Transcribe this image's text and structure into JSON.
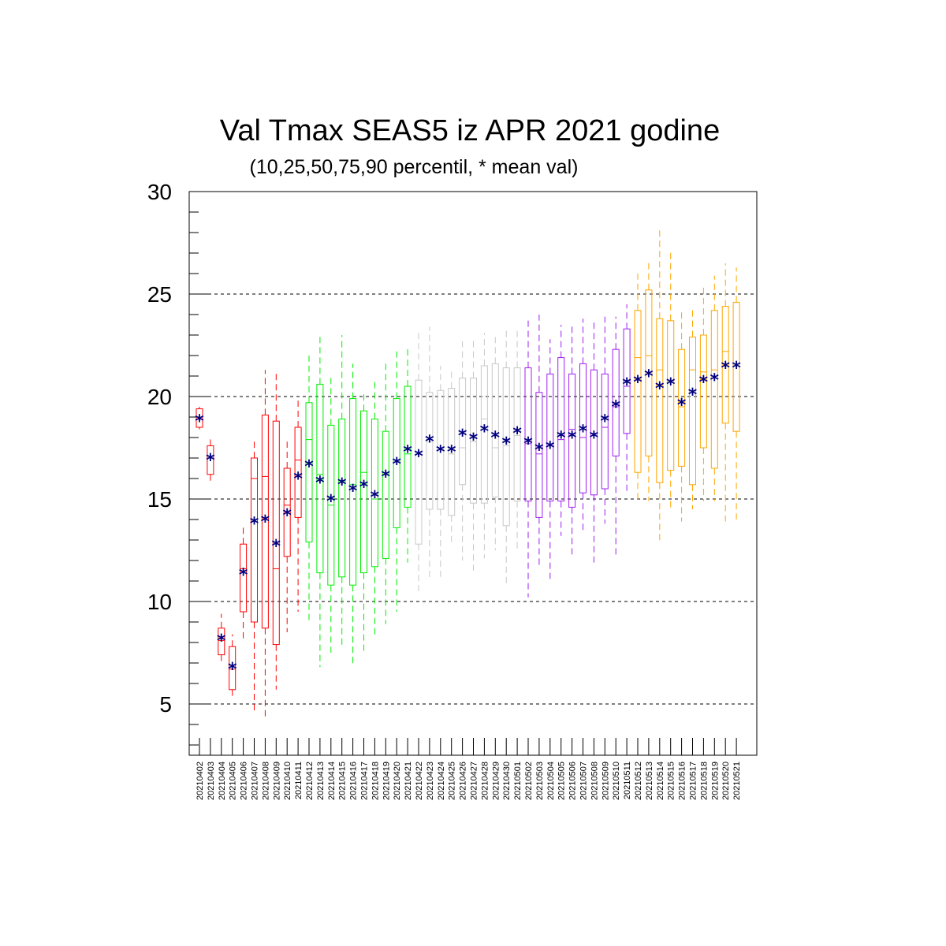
{
  "chart_data": {
    "type": "box",
    "title": "Val Tmax SEAS5 iz APR 2021 godine",
    "subtitle": "(10,25,50,75,90 percentil, * mean val)",
    "ylim": [
      2.5,
      30
    ],
    "yticks": [
      5,
      10,
      15,
      20,
      25,
      30
    ],
    "y_minor_step": 1,
    "grid": "horizontal dashed at major ticks",
    "mean_marker": "*",
    "mean_color": "#000080",
    "month_colors": {
      "2021-04-02..2021-04-11": "#ff0000",
      "2021-04-12..2021-04-21": "#00ee00",
      "2021-04-22..2021-05-01": "#c8c8c8",
      "2021-05-02..2021-05-11": "#a020f0",
      "2021-05-12..2021-05-21": "#ffa500"
    },
    "categories": [
      "20210402",
      "20210403",
      "20210404",
      "20210405",
      "20210406",
      "20210407",
      "20210408",
      "20210409",
      "20210410",
      "20210411",
      "20210412",
      "20210413",
      "20210414",
      "20210415",
      "20210416",
      "20210417",
      "20210418",
      "20210419",
      "20210420",
      "20210421",
      "20210422",
      "20210423",
      "20210424",
      "20210425",
      "20210426",
      "20210427",
      "20210428",
      "20210429",
      "20210430",
      "20210501",
      "20210502",
      "20210503",
      "20210504",
      "20210505",
      "20210506",
      "20210507",
      "20210508",
      "20210509",
      "20210510",
      "20210511",
      "20210512",
      "20210513",
      "20210514",
      "20210515",
      "20210516",
      "20210517",
      "20210518",
      "20210519",
      "20210520",
      "20210521"
    ],
    "p10": [
      18.4,
      15.8,
      7.0,
      5.4,
      8.2,
      4.5,
      4.2,
      5.7,
      8.5,
      9.5,
      9.0,
      6.8,
      7.5,
      7.8,
      6.9,
      7.5,
      8.4,
      8.9,
      9.5,
      11.9,
      10.5,
      11.0,
      11.2,
      12.8,
      12.0,
      11.5,
      12.1,
      12.5,
      10.7,
      12.5,
      10.2,
      11.7,
      11.1,
      13.2,
      12.3,
      13.4,
      11.9,
      13.8,
      12.2,
      15.2,
      14.9,
      14.9,
      12.8,
      14.5,
      13.9,
      14.5,
      14.9,
      14.9,
      13.9,
      13.9
    ],
    "p25": [
      18.5,
      16.2,
      7.4,
      5.7,
      9.5,
      9.0,
      8.7,
      7.9,
      12.2,
      14.1,
      12.9,
      11.4,
      10.8,
      11.2,
      10.8,
      11.4,
      11.7,
      12.1,
      13.6,
      14.6,
      12.8,
      14.5,
      14.5,
      14.2,
      15.7,
      14.8,
      14.8,
      15.1,
      13.7,
      14.9,
      14.9,
      14.1,
      14.9,
      14.9,
      14.6,
      15.3,
      15.2,
      15.5,
      17.1,
      18.2,
      16.3,
      17.1,
      15.8,
      16.4,
      16.6,
      15.7,
      17.5,
      16.5,
      18.7,
      18.3
    ],
    "p50": [
      18.9,
      17.0,
      8.1,
      6.7,
      11.6,
      16.0,
      16.1,
      11.6,
      14.7,
      16.9,
      17.9,
      16.2,
      14.7,
      15.9,
      15.7,
      16.3,
      15.0,
      16.2,
      16.9,
      17.2,
      17.3,
      17.8,
      17.4,
      17.2,
      17.5,
      17.8,
      18.9,
      17.5,
      17.6,
      18.1,
      17.7,
      17.2,
      17.6,
      17.9,
      18.4,
      18.0,
      18.2,
      18.5,
      19.5,
      20.5,
      21.9,
      22.0,
      21.3,
      20.7,
      19.5,
      21.3,
      21.2,
      21.3,
      22.2,
      21.5
    ],
    "p75": [
      19.4,
      17.6,
      8.7,
      7.8,
      12.8,
      17.0,
      19.1,
      18.8,
      16.5,
      18.5,
      19.7,
      20.6,
      18.6,
      18.9,
      19.9,
      19.3,
      18.9,
      18.3,
      19.9,
      20.5,
      20.8,
      20.2,
      20.3,
      20.4,
      20.9,
      20.9,
      21.5,
      21.6,
      21.4,
      21.4,
      21.4,
      20.2,
      21.1,
      21.9,
      21.1,
      21.6,
      21.3,
      21.1,
      22.3,
      23.3,
      24.2,
      25.2,
      23.8,
      23.7,
      22.3,
      22.9,
      23.0,
      24.2,
      24.4,
      24.6
    ],
    "p90": [
      19.5,
      18.0,
      9.4,
      8.4,
      13.6,
      17.8,
      21.3,
      21.3,
      17.8,
      19.8,
      22.0,
      23.0,
      21.1,
      23.0,
      21.6,
      20.3,
      20.8,
      21.6,
      22.2,
      22.4,
      23.3,
      23.4,
      21.5,
      21.3,
      22.7,
      22.9,
      23.1,
      22.9,
      23.3,
      23.2,
      23.9,
      24.0,
      22.8,
      23.5,
      23.6,
      23.8,
      23.8,
      23.9,
      23.9,
      24.5,
      26.0,
      26.7,
      28.2,
      27.1,
      24.2,
      24.3,
      25.4,
      25.9,
      26.5,
      26.3
    ],
    "mean": [
      18.9,
      17.0,
      8.2,
      6.8,
      11.4,
      13.9,
      14.0,
      12.8,
      14.3,
      16.1,
      16.7,
      15.9,
      15.0,
      15.8,
      15.5,
      15.7,
      15.2,
      16.2,
      16.8,
      17.4,
      17.2,
      17.9,
      17.4,
      17.4,
      18.2,
      18.0,
      18.4,
      18.1,
      17.8,
      18.3,
      17.8,
      17.5,
      17.6,
      18.1,
      18.1,
      18.4,
      18.1,
      18.9,
      19.6,
      20.7,
      20.8,
      21.1,
      20.5,
      20.7,
      19.7,
      20.2,
      20.8,
      20.9,
      21.5,
      21.5
    ]
  }
}
